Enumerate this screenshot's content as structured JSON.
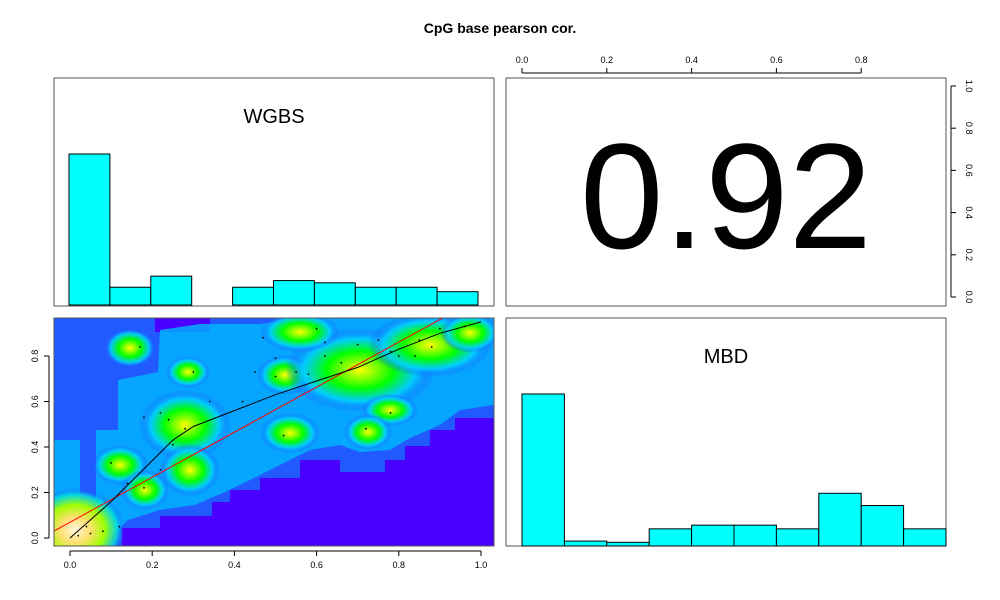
{
  "chart_data": {
    "type": "pairs",
    "title": "CpG base pearson cor.",
    "correlation": "0.92",
    "colors": {
      "histogram_fill": "#00ffff",
      "density_low": "#4a00ff",
      "loess_line": "#000000",
      "fit_line": "#ff0000",
      "frame": "#555555"
    },
    "histograms": [
      {
        "label": "WGBS",
        "bins": [
          0.0,
          0.1,
          0.2,
          0.3,
          0.4,
          0.5,
          0.6,
          0.7,
          0.8,
          0.9,
          1.0
        ],
        "values": [
          0.68,
          0.08,
          0.13,
          0.0,
          0.08,
          0.11,
          0.1,
          0.08,
          0.08,
          0.06
        ]
      },
      {
        "label": "MBD",
        "bins": [
          0.0,
          0.1,
          0.2,
          0.3,
          0.4,
          0.5,
          0.6,
          0.7,
          0.8,
          0.9,
          1.0
        ],
        "values": [
          0.62,
          0.02,
          0.015,
          0.07,
          0.085,
          0.085,
          0.07,
          0.215,
          0.165,
          0.07
        ]
      }
    ],
    "scatter": {
      "xlim": [
        0.0,
        1.0
      ],
      "ylim": [
        0.0,
        0.95
      ],
      "x_ticks": [
        "0.0",
        "0.2",
        "0.4",
        "0.6",
        "0.8",
        "1.0"
      ],
      "y_ticks": [
        "0.0",
        "0.2",
        "0.4",
        "0.6",
        "0.8"
      ],
      "points": [
        [
          0.02,
          0.01
        ],
        [
          0.05,
          0.02
        ],
        [
          0.04,
          0.05
        ],
        [
          0.08,
          0.03
        ],
        [
          0.12,
          0.05
        ],
        [
          0.14,
          0.24
        ],
        [
          0.18,
          0.22
        ],
        [
          0.22,
          0.3
        ],
        [
          0.25,
          0.41
        ],
        [
          0.28,
          0.48
        ],
        [
          0.18,
          0.53
        ],
        [
          0.22,
          0.55
        ],
        [
          0.24,
          0.52
        ],
        [
          0.17,
          0.84
        ],
        [
          0.3,
          0.73
        ],
        [
          0.1,
          0.33
        ],
        [
          0.45,
          0.73
        ],
        [
          0.5,
          0.71
        ],
        [
          0.5,
          0.79
        ],
        [
          0.55,
          0.73
        ],
        [
          0.58,
          0.72
        ],
        [
          0.62,
          0.8
        ],
        [
          0.62,
          0.86
        ],
        [
          0.66,
          0.77
        ],
        [
          0.7,
          0.85
        ],
        [
          0.75,
          0.87
        ],
        [
          0.78,
          0.82
        ],
        [
          0.8,
          0.8
        ],
        [
          0.84,
          0.8
        ],
        [
          0.88,
          0.84
        ],
        [
          0.9,
          0.92
        ],
        [
          0.78,
          0.55
        ],
        [
          0.72,
          0.48
        ],
        [
          0.52,
          0.45
        ],
        [
          0.42,
          0.6
        ],
        [
          0.6,
          0.92
        ],
        [
          0.47,
          0.88
        ],
        [
          0.34,
          0.6
        ],
        [
          0.96,
          0.93
        ],
        [
          0.85,
          0.87
        ]
      ],
      "loess": [
        [
          0.0,
          0.0
        ],
        [
          0.1,
          0.16
        ],
        [
          0.2,
          0.34
        ],
        [
          0.25,
          0.43
        ],
        [
          0.3,
          0.49
        ],
        [
          0.4,
          0.56
        ],
        [
          0.5,
          0.63
        ],
        [
          0.6,
          0.69
        ],
        [
          0.7,
          0.75
        ],
        [
          0.8,
          0.83
        ],
        [
          0.9,
          0.9
        ],
        [
          1.0,
          0.95
        ]
      ],
      "fit": [
        [
          -0.05,
          0.02
        ],
        [
          0.91,
          0.97
        ]
      ]
    },
    "top_axis": {
      "x_ticks": [
        "0.0",
        "0.2",
        "0.4",
        "0.6",
        "0.8"
      ]
    },
    "right_axis": {
      "y_ticks": [
        "0.0",
        "0.2",
        "0.4",
        "0.6",
        "0.8",
        "1.0"
      ]
    }
  }
}
